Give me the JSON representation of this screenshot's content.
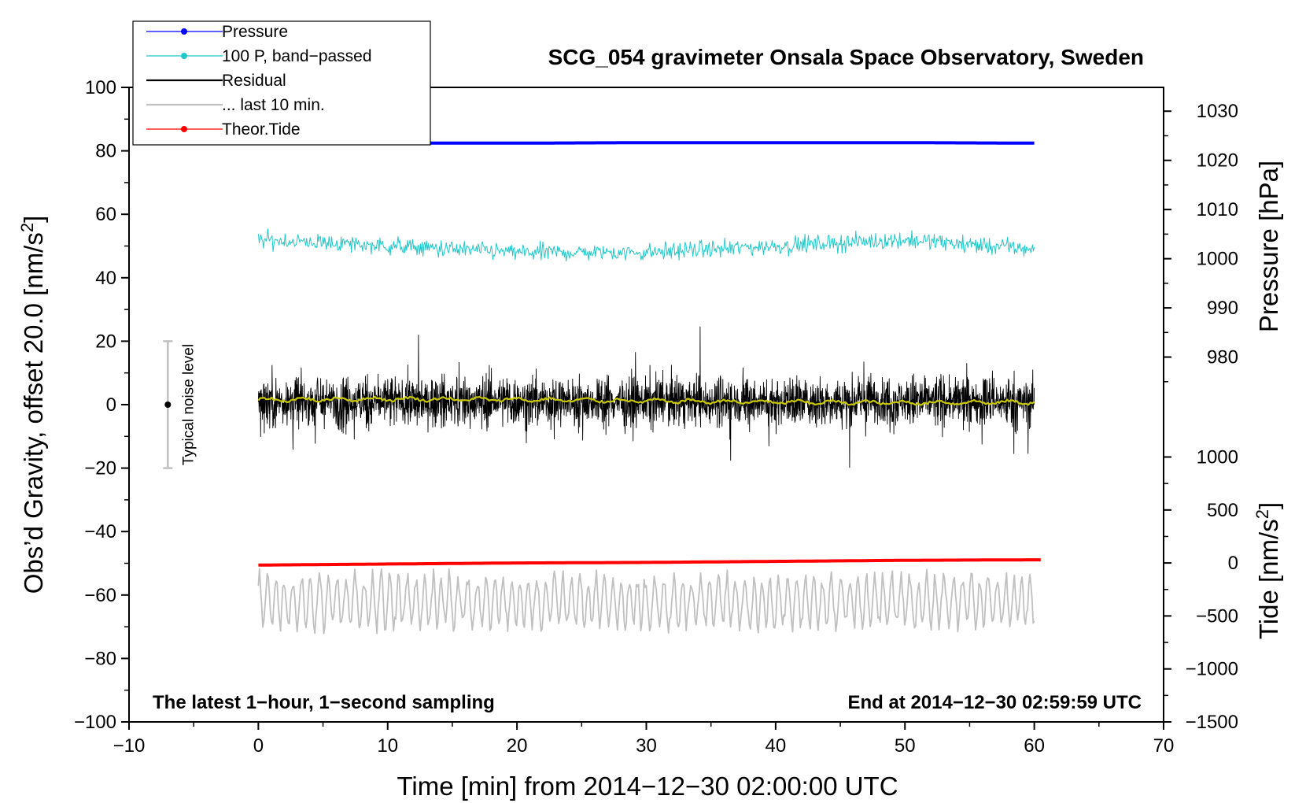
{
  "chart_data": {
    "type": "line",
    "title": "SCG_054 gravimeter Onsala Space Observatory, Sweden",
    "xlabel": "Time [min] from 2014−12−30 02:00:00 UTC",
    "ylabel_main": "Obs’d Gravity, offset 20.0 [nm/s",
    "ylabel_main_sup": "2",
    "ylabel_main_suffix": "]",
    "ylabel_pressure": "Pressure [hPa]",
    "ylabel_tide": "Tide [nm/s",
    "ylabel_tide_sup": "2",
    "ylabel_tide_suffix": "]",
    "xlim": [
      -10,
      70
    ],
    "ylim": [
      -100,
      100
    ],
    "x_ticks": [
      -10,
      0,
      10,
      20,
      30,
      40,
      50,
      60,
      70
    ],
    "x_tick_labels": [
      "−10",
      "0",
      "10",
      "20",
      "30",
      "40",
      "50",
      "60",
      "70"
    ],
    "y_ticks": [
      -100,
      -80,
      -60,
      -40,
      -20,
      0,
      20,
      40,
      60,
      80,
      100
    ],
    "y_tick_labels": [
      "−100",
      "−80",
      "−60",
      "−40",
      "−20",
      "0",
      "20",
      "40",
      "60",
      "80",
      "100"
    ],
    "pressure_axis": {
      "ticks": [
        980,
        990,
        1000,
        1010,
        1020,
        1030
      ],
      "tick_labels": [
        "980",
        "990",
        "1000",
        "1010",
        "1020",
        "1030"
      ],
      "mapping": {
        "hpa": [
          980,
          1030
        ],
        "gravity": [
          15,
          92.5
        ]
      }
    },
    "tide_axis": {
      "ticks": [
        -1500,
        -1000,
        -500,
        0,
        500,
        1000
      ],
      "tick_labels": [
        "−1500",
        "−1000",
        "−500",
        "0",
        "500",
        "1000"
      ],
      "mapping": {
        "tide": [
          -1500,
          1000
        ],
        "gravity": [
          -100,
          -16.5
        ]
      }
    },
    "grid": false,
    "legend_position": "top-left",
    "legend": [
      {
        "label": "Pressure",
        "color": "#0000ff",
        "marker": "dot"
      },
      {
        "label": "100 P, band−passed",
        "color": "#20c8c8",
        "marker": "dot"
      },
      {
        "label": "Residual",
        "color": "#000000",
        "marker": "none"
      },
      {
        "label": "... last 10 min.",
        "color": "#c0c0c0",
        "marker": "none"
      },
      {
        "label": "Theor.Tide",
        "color": "#ff0000",
        "marker": "dot"
      }
    ],
    "series": [
      {
        "key": "pressure",
        "color": "#0000ff",
        "axis": "pressure",
        "x_range": [
          0,
          60
        ],
        "x": [
          0,
          10,
          20,
          30,
          40,
          50,
          60
        ],
        "y": [
          1023.4,
          1023.5,
          1023.5,
          1023.6,
          1023.6,
          1023.6,
          1023.5
        ]
      },
      {
        "key": "bandpassed",
        "color": "#20c8c8",
        "axis": "main",
        "x_range": [
          0,
          60
        ],
        "x": [
          0,
          10,
          20,
          30,
          40,
          50,
          60
        ],
        "y": [
          52,
          50,
          48,
          48,
          50,
          52,
          49
        ],
        "amplitude": 3
      },
      {
        "key": "residual",
        "color": "#000000",
        "axis": "main",
        "x_range": [
          0,
          60
        ],
        "x": [
          0,
          10,
          20,
          30,
          40,
          50,
          60
        ],
        "y": [
          1,
          1,
          1,
          1,
          1,
          1,
          1
        ],
        "amplitude": 9
      },
      {
        "key": "residual_smoothed",
        "color": "#c8c800",
        "axis": "main",
        "x_range": [
          0,
          60
        ],
        "x": [
          0,
          10,
          20,
          30,
          40,
          50,
          60
        ],
        "y": [
          1.5,
          1.8,
          1.6,
          1.2,
          0.8,
          0.6,
          0.8
        ]
      },
      {
        "key": "last_10_min",
        "color": "#c0c0c0",
        "axis": "main",
        "x_range": [
          0,
          60
        ],
        "x": [
          0,
          10,
          20,
          30,
          40,
          50,
          60
        ],
        "y": [
          -62,
          -62,
          -62,
          -62,
          -62,
          -62,
          -62
        ],
        "amplitude": 10
      },
      {
        "key": "tide",
        "color": "#ff0000",
        "axis": "tide",
        "x_range": [
          0,
          60.5
        ],
        "x": [
          0,
          10,
          20,
          30,
          40,
          50,
          60.5
        ],
        "y": [
          -20,
          -10,
          0,
          5,
          15,
          25,
          30
        ]
      }
    ],
    "noise_bar": {
      "label": "Typical noise level",
      "x": -7,
      "center": 0,
      "low": -20,
      "high": 20
    },
    "annotations": {
      "bottom_left": "The latest 1−hour, 1−second sampling",
      "bottom_right": "End at 2014−12−30 02:59:59 UTC"
    }
  },
  "colors": {
    "pressure": "#0000ff",
    "bandpassed": "#20c8c8",
    "residual": "#000000",
    "residual_smoothed": "#c8c800",
    "last_10_min": "#c0c0c0",
    "tide": "#ff0000"
  }
}
